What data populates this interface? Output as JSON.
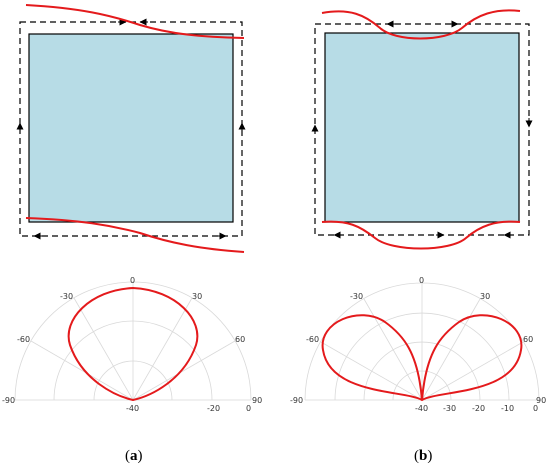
{
  "panels": [
    {
      "id": "a",
      "caption_open": "(",
      "caption_letter": "a",
      "caption_close": ")",
      "polar_angle_labels": [
        "-90",
        "-60",
        "-30",
        "0",
        "30",
        "60",
        "90"
      ],
      "polar_radial_labels": [
        "-40",
        "-20",
        "0"
      ]
    },
    {
      "id": "b",
      "caption_open": "(",
      "caption_letter": "b",
      "caption_close": ")",
      "polar_angle_labels": [
        "-90",
        "-60",
        "-30",
        "0",
        "30",
        "60",
        "90"
      ],
      "polar_radial_labels": [
        "-40",
        "-30",
        "-20",
        "-10",
        "0"
      ]
    }
  ],
  "colors": {
    "box_fill": "#b7dce6",
    "box_stroke": "#000000",
    "curve": "#e41a1c",
    "dashed_path": "#000000",
    "polar_grid": "#d9d9d9"
  }
}
